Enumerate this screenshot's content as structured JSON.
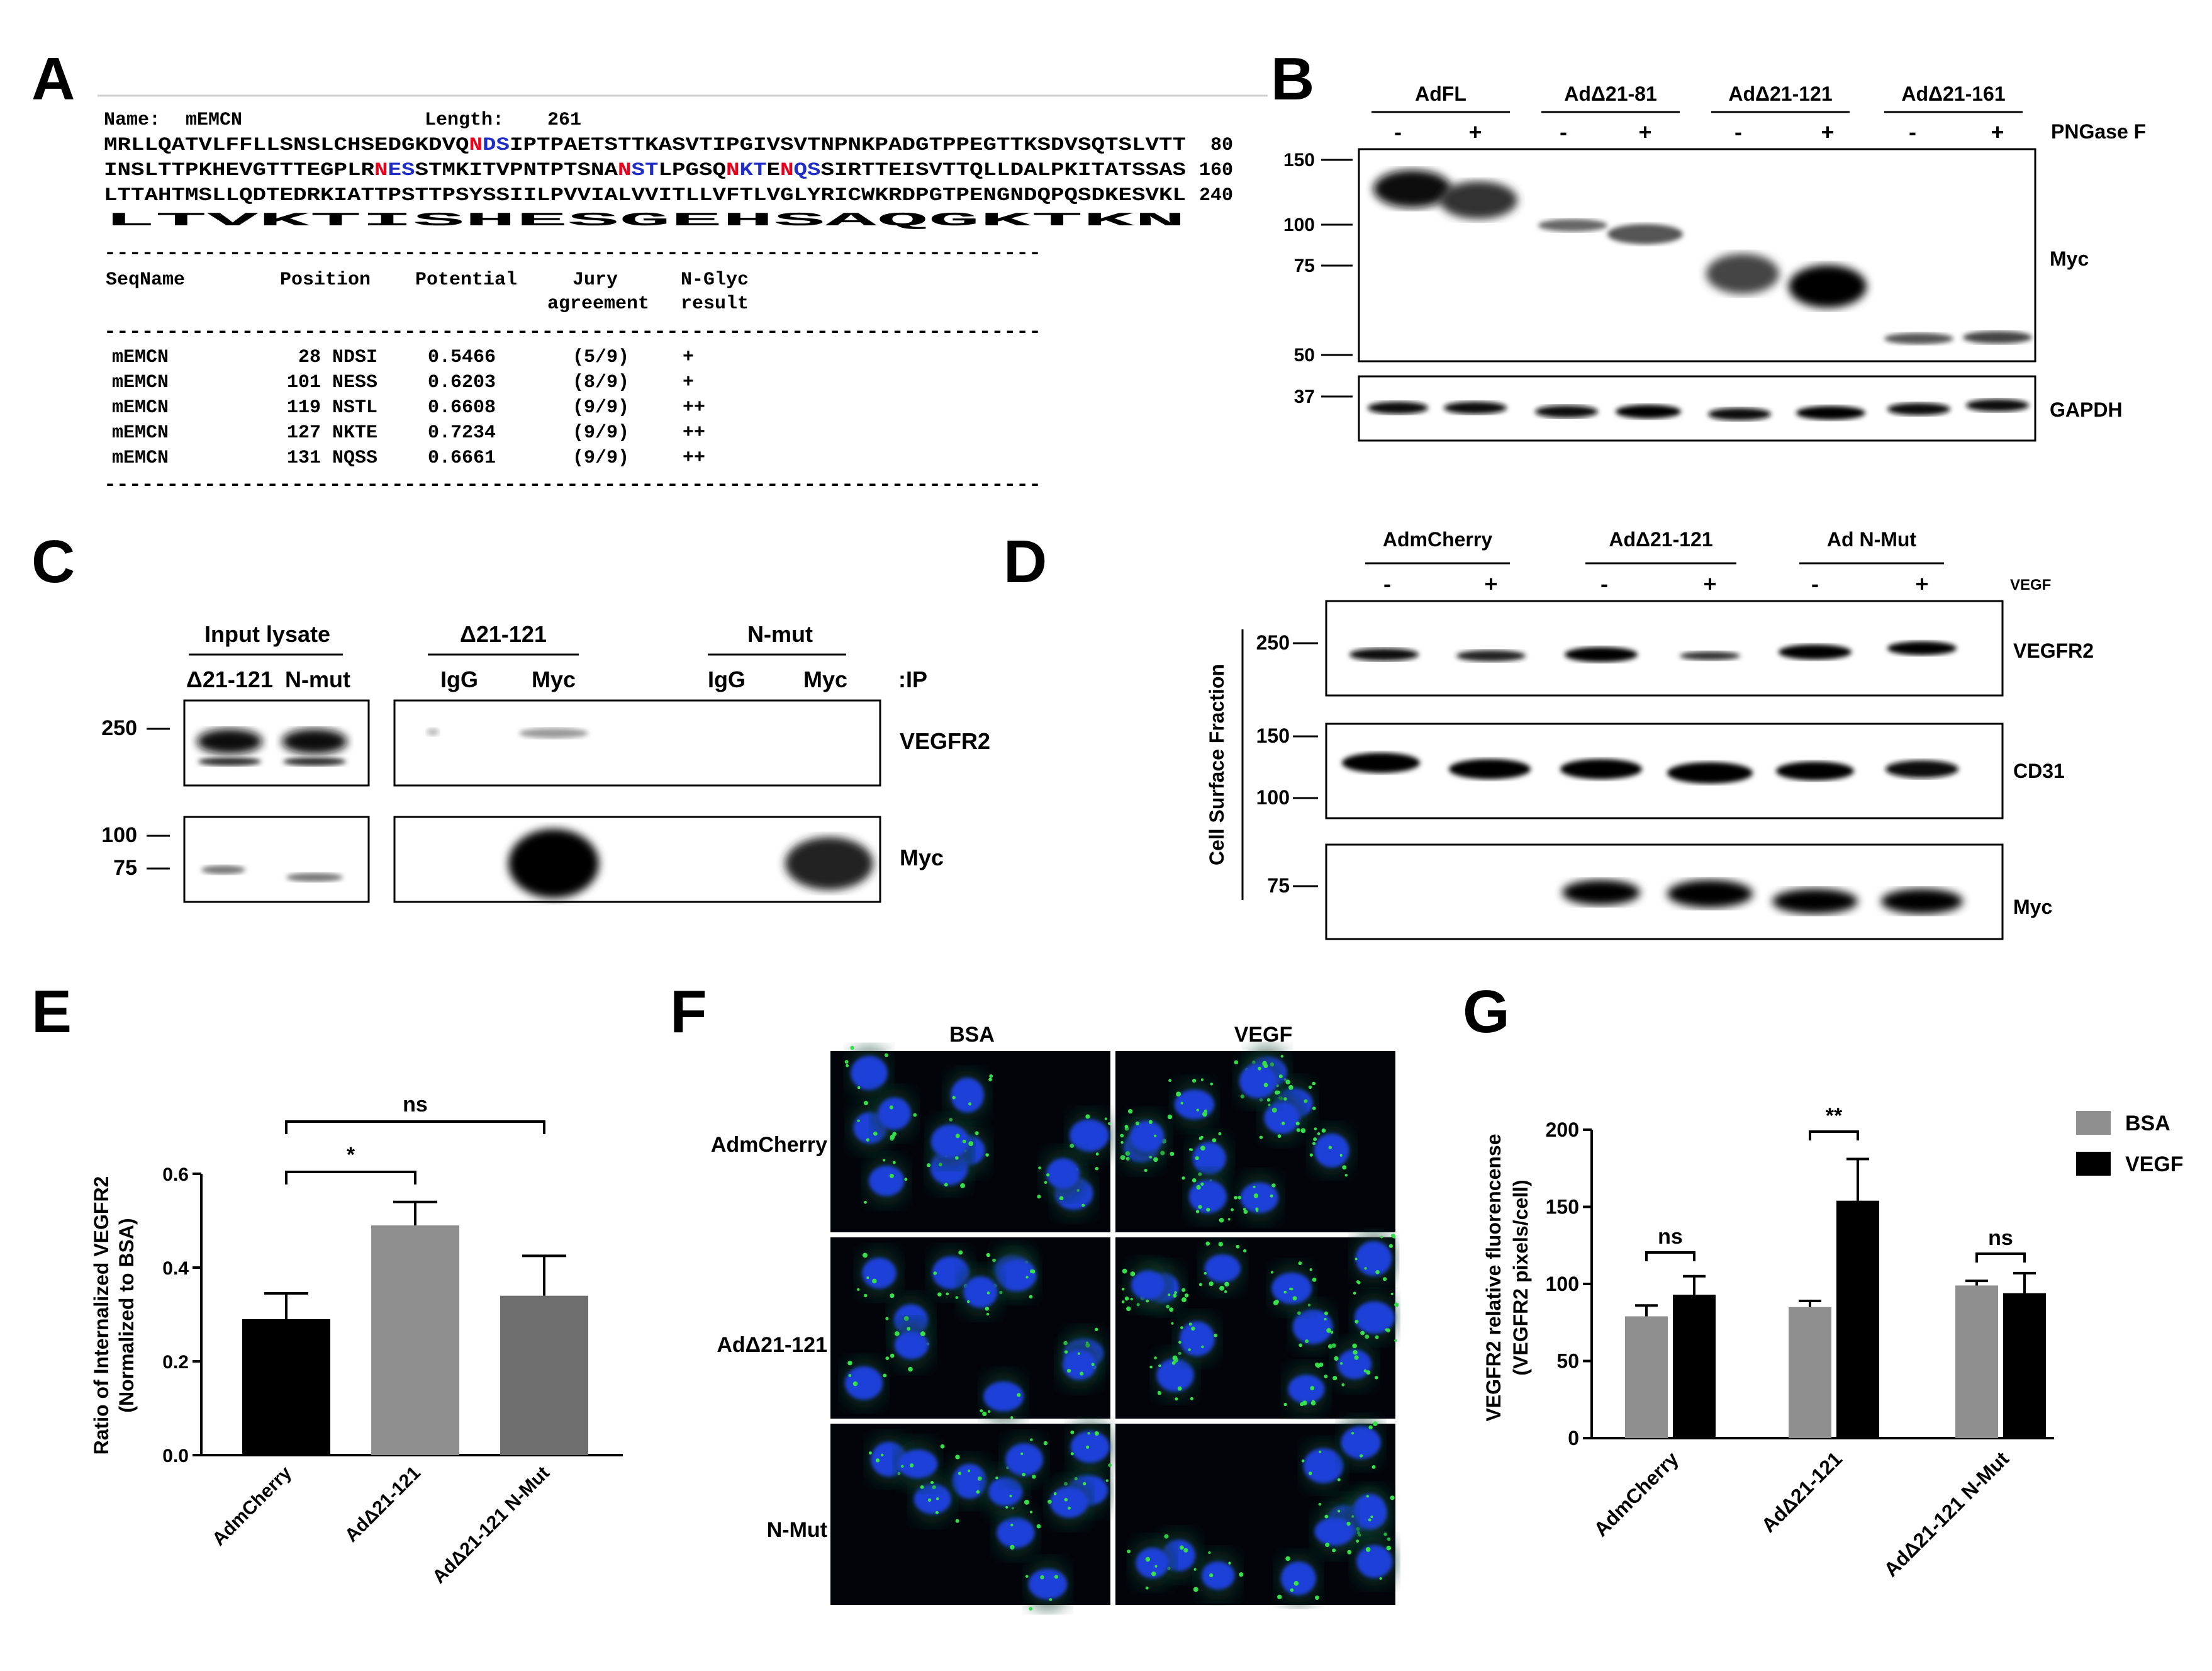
{
  "panel_letters": {
    "a": "A",
    "b": "B",
    "c": "C",
    "d": "D",
    "e": "E",
    "f": "F",
    "g": "G"
  },
  "panelA": {
    "name_label": "Name:",
    "name": "mEMCN",
    "length_label": "Length:",
    "length": "261",
    "seq_lines": [
      {
        "segments": [
          {
            "t": "MRLLQATVLFFLLSNSLCHSEDGKDVQ",
            "c": "k"
          },
          {
            "t": "N",
            "c": "r"
          },
          {
            "t": "DS",
            "c": "b"
          },
          {
            "t": "IPTPAETSTTKASVTIPGIVSVTNPNKPADGTPPEGTTKSDVSQTSLVTT",
            "c": "k"
          }
        ],
        "num": "80"
      },
      {
        "segments": [
          {
            "t": "INSLTTPKHEVGTTTEGPLR",
            "c": "k"
          },
          {
            "t": "N",
            "c": "r"
          },
          {
            "t": "ES",
            "c": "b"
          },
          {
            "t": "STMKITVPNTPTSNA",
            "c": "k"
          },
          {
            "t": "N",
            "c": "r"
          },
          {
            "t": "ST",
            "c": "b"
          },
          {
            "t": "LPGSQ",
            "c": "k"
          },
          {
            "t": "N",
            "c": "r"
          },
          {
            "t": "KT",
            "c": "b"
          },
          {
            "t": "E",
            "c": "k"
          },
          {
            "t": "N",
            "c": "r"
          },
          {
            "t": "QS",
            "c": "b"
          },
          {
            "t": "SIRTTEISVTTQLLDALPKITATSSAS",
            "c": "k"
          }
        ],
        "num": "160"
      },
      {
        "segments": [
          {
            "t": "LTTAHTMSLLQDTEDRKIATTPSTTPSYSSIILPVVIALVVITLLVFTLVGLYRICWKRDPGTPENGNDQPQSDKESVKL",
            "c": "k"
          }
        ],
        "num": "240"
      },
      {
        "segments": [
          {
            "t": "LTVKTISHESGEHSAQGKTKN",
            "c": "k"
          }
        ],
        "num": ""
      }
    ],
    "dash_line": "---------------------------------------------------------------------------",
    "headers": {
      "seqname": "SeqName",
      "position": "Position",
      "potential": "Potential",
      "jury1": "Jury",
      "jury2": "agreement",
      "nglyc1": "N-Glyc",
      "nglyc2": "result"
    },
    "rows": [
      {
        "name": "mEMCN",
        "pos": "28",
        "site": "NDSI",
        "potential": "0.5466",
        "jury": "(5/9)",
        "jury_red": false,
        "result": "+"
      },
      {
        "name": "mEMCN",
        "pos": "101",
        "site": "NESS",
        "potential": "0.6203",
        "jury": "(8/9)",
        "jury_red": false,
        "result": "+"
      },
      {
        "name": "mEMCN",
        "pos": "119",
        "site": "NSTL",
        "potential": "0.6608",
        "jury": "(9/9)",
        "jury_red": true,
        "result": "++"
      },
      {
        "name": "mEMCN",
        "pos": "127",
        "site": "NKTE",
        "potential": "0.7234",
        "jury": "(9/9)",
        "jury_red": true,
        "result": "++"
      },
      {
        "name": "mEMCN",
        "pos": "131",
        "site": "NQSS",
        "potential": "0.6661",
        "jury": "(9/9)",
        "jury_red": true,
        "result": "++"
      }
    ]
  },
  "panelB": {
    "groups": [
      "AdFL",
      "AdΔ21-81",
      "AdΔ21-121",
      "AdΔ21-161"
    ],
    "minus": "-",
    "plus": "+",
    "treatment": "PNGase F",
    "mw_top": [
      "150",
      "100",
      "75",
      "50"
    ],
    "mw_bottom": [
      "37"
    ],
    "blot_top": "Myc",
    "blot_bottom": "GAPDH"
  },
  "panelC": {
    "input_title": "Input lysate",
    "input_lanes": [
      "Δ21-121",
      "N-mut"
    ],
    "ip_groups": [
      "Δ21-121",
      "N-mut"
    ],
    "ip_lanes": [
      "IgG",
      "Myc",
      "IgG",
      "Myc"
    ],
    "ip_label": ":IP",
    "mw_top": [
      "250"
    ],
    "mw_bottom": [
      "100",
      "75"
    ],
    "blot_top": "VEGFR2",
    "blot_bottom": "Myc"
  },
  "panelD": {
    "groups": [
      "AdmCherry",
      "AdΔ21-121",
      "Ad N-Mut"
    ],
    "minus": "-",
    "plus": "+",
    "treatment": "VEGF",
    "fraction_label": "Cell Surface Fraction",
    "mw1": [
      "250"
    ],
    "mw2": [
      "150",
      "100"
    ],
    "mw3": [
      "75"
    ],
    "blots": [
      "VEGFR2",
      "CD31",
      "Myc"
    ]
  },
  "panelF": {
    "cols": [
      "BSA",
      "VEGF"
    ],
    "rows": [
      "AdmCherry",
      "AdΔ21-121",
      "N-Mut"
    ]
  },
  "chart_data": [
    {
      "panel": "E",
      "type": "bar",
      "categories": [
        "AdmCherry",
        "AdΔ21-121",
        "AdΔ21-121 N-Mut"
      ],
      "values": [
        0.29,
        0.49,
        0.34
      ],
      "errors": [
        0.055,
        0.05,
        0.085
      ],
      "colors": [
        "#000000",
        "#8f8f8f",
        "#6e6e6e"
      ],
      "ylabel": "Ratio of Internalized VEGFR2",
      "ylabel2": "(Normalized to BSA)",
      "ylim": [
        0,
        0.6
      ],
      "yticks": [
        "0.0",
        "0.2",
        "0.4",
        "0.6"
      ],
      "significance": [
        {
          "from": 0,
          "to": 1,
          "label": "*"
        },
        {
          "from": 0,
          "to": 2,
          "label": "ns"
        }
      ]
    },
    {
      "panel": "G",
      "type": "bar",
      "categories": [
        "AdmCherry",
        "AdΔ21-121",
        "AdΔ21-121 N-Mut"
      ],
      "series": [
        {
          "name": "BSA",
          "color": "#8f8f8f",
          "values": [
            79,
            85,
            99
          ],
          "errors": [
            7,
            4,
            3
          ]
        },
        {
          "name": "VEGF",
          "color": "#000000",
          "values": [
            93,
            154,
            94
          ],
          "errors": [
            12,
            27,
            13
          ]
        }
      ],
      "ylabel": "VEGFR2 relative fluorencense",
      "ylabel2": "(VEGFR2 pixels/cell)",
      "ylim": [
        0,
        200
      ],
      "yticks": [
        "0",
        "50",
        "100",
        "150",
        "200"
      ],
      "legend_position": "top-right",
      "significance": [
        "ns",
        "**",
        "ns"
      ]
    }
  ]
}
